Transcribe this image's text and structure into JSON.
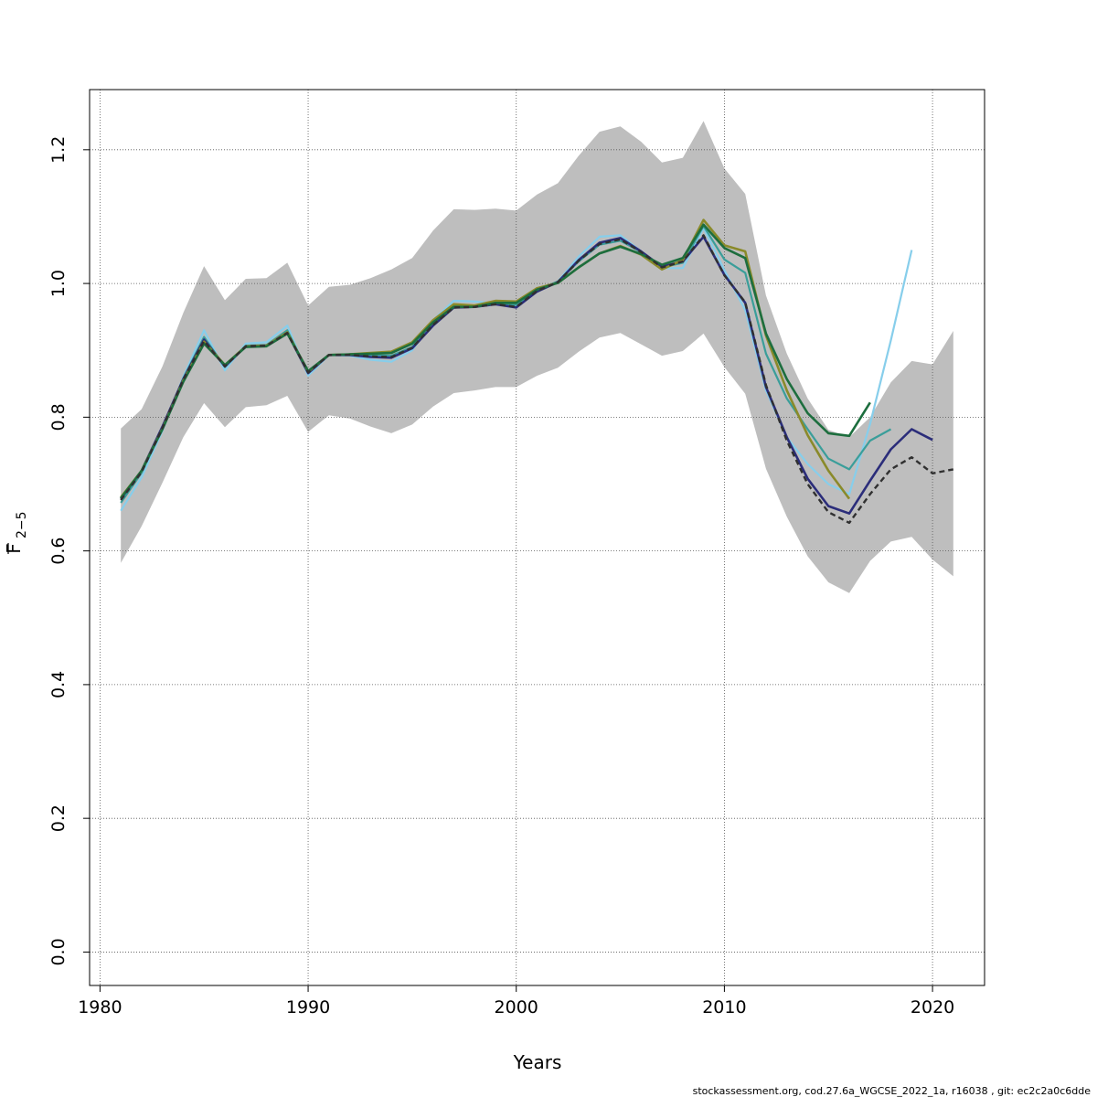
{
  "chart_data": {
    "type": "line",
    "xlabel": "Years",
    "ylabel_main": "F",
    "ylabel_sub": "2−5",
    "xlim": [
      1979.5,
      2022.5
    ],
    "ylim": [
      -0.05,
      1.29
    ],
    "x_ticks": [
      1980,
      1990,
      2000,
      2010,
      2020
    ],
    "y_ticks": [
      0.0,
      0.2,
      0.4,
      0.6,
      0.8,
      1.0,
      1.2
    ],
    "grid": true,
    "band": {
      "color": "#bebebe",
      "x": [
        1981,
        1982,
        1983,
        1984,
        1985,
        1986,
        1987,
        1988,
        1989,
        1990,
        1991,
        1992,
        1993,
        1994,
        1995,
        1996,
        1997,
        1998,
        1999,
        2000,
        2001,
        2002,
        2003,
        2004,
        2005,
        2006,
        2007,
        2008,
        2009,
        2010,
        2011,
        2012,
        2013,
        2014,
        2015,
        2016,
        2017,
        2018,
        2019,
        2020,
        2021
      ],
      "upper": [
        0.783,
        0.812,
        0.876,
        0.956,
        1.026,
        0.975,
        1.007,
        1.008,
        1.031,
        0.967,
        0.995,
        0.998,
        1.008,
        1.021,
        1.038,
        1.079,
        1.111,
        1.11,
        1.112,
        1.109,
        1.133,
        1.15,
        1.191,
        1.227,
        1.235,
        1.212,
        1.181,
        1.188,
        1.243,
        1.172,
        1.134,
        0.982,
        0.895,
        0.828,
        0.781,
        0.77,
        0.8,
        0.852,
        0.884,
        0.879,
        0.929
      ],
      "lower": [
        0.582,
        0.637,
        0.702,
        0.77,
        0.821,
        0.785,
        0.815,
        0.818,
        0.832,
        0.778,
        0.803,
        0.798,
        0.786,
        0.776,
        0.789,
        0.816,
        0.836,
        0.84,
        0.845,
        0.845,
        0.862,
        0.874,
        0.898,
        0.919,
        0.926,
        0.909,
        0.892,
        0.899,
        0.925,
        0.875,
        0.835,
        0.723,
        0.651,
        0.592,
        0.553,
        0.537,
        0.585,
        0.614,
        0.621,
        0.587,
        0.562
      ]
    },
    "series": [
      {
        "color": "#87ceeb",
        "width": 2.2,
        "dash": "none",
        "x": [
          1981,
          1982,
          1983,
          1984,
          1985,
          1986,
          1987,
          1988,
          1989,
          1990,
          1991,
          1992,
          1993,
          1994,
          1995,
          1996,
          1997,
          1998,
          1999,
          2000,
          2001,
          2002,
          2003,
          2004,
          2005,
          2006,
          2007,
          2008,
          2009,
          2010,
          2011,
          2012,
          2013,
          2014,
          2015,
          2016,
          2017,
          2018,
          2019
        ],
        "values": [
          0.66,
          0.71,
          0.78,
          0.86,
          0.93,
          0.87,
          0.91,
          0.912,
          0.937,
          0.862,
          0.893,
          0.892,
          0.886,
          0.883,
          0.9,
          0.945,
          0.974,
          0.973,
          0.97,
          0.966,
          0.99,
          1.003,
          1.04,
          1.07,
          1.072,
          1.048,
          1.023,
          1.023,
          1.083,
          1.02,
          0.96,
          0.84,
          0.77,
          0.73,
          0.7,
          0.685,
          0.79,
          0.915,
          1.05
        ]
      },
      {
        "color": "#3a9e9a",
        "width": 2.2,
        "dash": "none",
        "x": [
          1981,
          1982,
          1983,
          1984,
          1985,
          1986,
          1987,
          1988,
          1989,
          1990,
          1991,
          1992,
          1993,
          1994,
          1995,
          1996,
          1997,
          1998,
          1999,
          2000,
          2001,
          2002,
          2003,
          2004,
          2005,
          2006,
          2007,
          2008,
          2009,
          2010,
          2011,
          2012,
          2013,
          2014,
          2015,
          2016,
          2017,
          2018
        ],
        "values": [
          0.672,
          0.717,
          0.784,
          0.858,
          0.92,
          0.875,
          0.907,
          0.908,
          0.93,
          0.866,
          0.893,
          0.893,
          0.893,
          0.892,
          0.905,
          0.944,
          0.967,
          0.966,
          0.97,
          0.968,
          0.99,
          1.003,
          1.033,
          1.058,
          1.064,
          1.047,
          1.024,
          1.031,
          1.086,
          1.036,
          1.016,
          0.895,
          0.828,
          0.782,
          0.738,
          0.722,
          0.765,
          0.782
        ]
      },
      {
        "color": "#2b2d7a",
        "width": 2.6,
        "dash": "none",
        "x": [
          1981,
          1982,
          1983,
          1984,
          1985,
          1986,
          1987,
          1988,
          1989,
          1990,
          1991,
          1992,
          1993,
          1994,
          1995,
          1996,
          1997,
          1998,
          1999,
          2000,
          2001,
          2002,
          2003,
          2004,
          2005,
          2006,
          2007,
          2008,
          2009,
          2010,
          2011,
          2012,
          2013,
          2014,
          2015,
          2016,
          2017,
          2018,
          2019,
          2020
        ],
        "values": [
          0.678,
          0.72,
          0.786,
          0.857,
          0.916,
          0.876,
          0.906,
          0.907,
          0.926,
          0.866,
          0.893,
          0.893,
          0.89,
          0.889,
          0.903,
          0.937,
          0.964,
          0.965,
          0.969,
          0.964,
          0.988,
          1.002,
          1.035,
          1.061,
          1.068,
          1.048,
          1.025,
          1.033,
          1.07,
          1.013,
          0.971,
          0.845,
          0.77,
          0.708,
          0.667,
          0.656,
          0.705,
          0.752,
          0.782,
          0.766
        ]
      },
      {
        "color": "#8a8a2a",
        "width": 2.6,
        "dash": "none",
        "x": [
          1981,
          1982,
          1983,
          1984,
          1985,
          1986,
          1987,
          1988,
          1989,
          1990,
          1991,
          1992,
          1993,
          1994,
          1995,
          1996,
          1997,
          1998,
          1999,
          2000,
          2001,
          2002,
          2003,
          2004,
          2005,
          2006,
          2007,
          2008,
          2009,
          2010,
          2011,
          2012,
          2013,
          2014,
          2015,
          2016
        ],
        "values": [
          0.68,
          0.72,
          0.783,
          0.855,
          0.913,
          0.878,
          0.906,
          0.907,
          0.927,
          0.868,
          0.893,
          0.894,
          0.896,
          0.898,
          0.912,
          0.945,
          0.969,
          0.967,
          0.974,
          0.973,
          0.993,
          1.001,
          1.024,
          1.045,
          1.056,
          1.043,
          1.021,
          1.035,
          1.095,
          1.057,
          1.048,
          0.922,
          0.84,
          0.773,
          0.72,
          0.678
        ]
      },
      {
        "color": "#1d6e3e",
        "width": 2.6,
        "dash": "none",
        "x": [
          1981,
          1982,
          1983,
          1984,
          1985,
          1986,
          1987,
          1988,
          1989,
          1990,
          1991,
          1992,
          1993,
          1994,
          1995,
          1996,
          1997,
          1998,
          1999,
          2000,
          2001,
          2002,
          2003,
          2004,
          2005,
          2006,
          2007,
          2008,
          2009,
          2010,
          2011,
          2012,
          2013,
          2014,
          2015,
          2016,
          2017
        ],
        "values": [
          0.679,
          0.72,
          0.782,
          0.853,
          0.91,
          0.878,
          0.905,
          0.906,
          0.925,
          0.869,
          0.893,
          0.894,
          0.895,
          0.896,
          0.91,
          0.942,
          0.965,
          0.965,
          0.971,
          0.971,
          0.991,
          1.001,
          1.024,
          1.045,
          1.055,
          1.044,
          1.028,
          1.038,
          1.088,
          1.053,
          1.038,
          0.925,
          0.857,
          0.806,
          0.776,
          0.772,
          0.822
        ]
      },
      {
        "color": "#303030",
        "width": 2.4,
        "dash": "6,4",
        "x": [
          1981,
          1982,
          1983,
          1984,
          1985,
          1986,
          1987,
          1988,
          1989,
          1990,
          1991,
          1992,
          1993,
          1994,
          1995,
          1996,
          1997,
          1998,
          1999,
          2000,
          2001,
          2002,
          2003,
          2004,
          2005,
          2006,
          2007,
          2008,
          2009,
          2010,
          2011,
          2012,
          2013,
          2014,
          2015,
          2016,
          2017,
          2018,
          2019,
          2020,
          2021
        ],
        "values": [
          0.676,
          0.718,
          0.784,
          0.856,
          0.914,
          0.876,
          0.906,
          0.907,
          0.926,
          0.867,
          0.893,
          0.893,
          0.891,
          0.89,
          0.904,
          0.938,
          0.964,
          0.965,
          0.969,
          0.965,
          0.989,
          1.002,
          1.034,
          1.059,
          1.066,
          1.047,
          1.024,
          1.033,
          1.072,
          1.012,
          0.972,
          0.848,
          0.765,
          0.7,
          0.658,
          0.642,
          0.685,
          0.722,
          0.74,
          0.716,
          0.722
        ]
      }
    ]
  },
  "footer": "stockassessment.org, cod.27.6a_WGCSE_2022_1a, r16038 , git: ec2c2a0c6dde"
}
